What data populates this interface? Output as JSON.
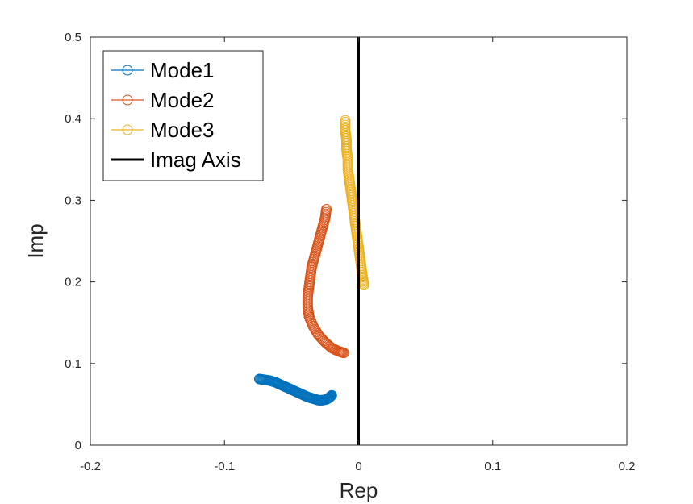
{
  "chart_data": {
    "type": "scatter",
    "xlabel": "Rep",
    "ylabel": "Imp",
    "xlim": [
      -0.2,
      0.2
    ],
    "ylim": [
      0,
      0.5
    ],
    "xticks": [
      -0.2,
      -0.1,
      0,
      0.1,
      0.2
    ],
    "yticks": [
      0,
      0.1,
      0.2,
      0.3,
      0.4,
      0.5
    ],
    "xtick_labels": [
      "-0.2",
      "-0.1",
      "0",
      "0.1",
      "0.2"
    ],
    "ytick_labels": [
      "0",
      "0.1",
      "0.2",
      "0.3",
      "0.4",
      "0.5"
    ],
    "legend_position": "top-left",
    "series": [
      {
        "name": "Mode1",
        "color": "#0072BD",
        "marker": "circle",
        "points": [
          [
            -0.074,
            0.081
          ],
          [
            -0.07,
            0.08
          ],
          [
            -0.066,
            0.079
          ],
          [
            -0.062,
            0.077
          ],
          [
            -0.058,
            0.074
          ],
          [
            -0.054,
            0.071
          ],
          [
            -0.05,
            0.068
          ],
          [
            -0.046,
            0.065
          ],
          [
            -0.042,
            0.062
          ],
          [
            -0.038,
            0.059
          ],
          [
            -0.034,
            0.057
          ],
          [
            -0.03,
            0.055
          ],
          [
            -0.027,
            0.055
          ],
          [
            -0.024,
            0.056
          ],
          [
            -0.022,
            0.058
          ],
          [
            -0.02,
            0.061
          ]
        ]
      },
      {
        "name": "Mode2",
        "color": "#D95319",
        "marker": "circle",
        "points": [
          [
            -0.024,
            0.289
          ],
          [
            -0.025,
            0.278
          ],
          [
            -0.027,
            0.266
          ],
          [
            -0.029,
            0.254
          ],
          [
            -0.031,
            0.242
          ],
          [
            -0.033,
            0.23
          ],
          [
            -0.035,
            0.218
          ],
          [
            -0.036,
            0.206
          ],
          [
            -0.037,
            0.194
          ],
          [
            -0.038,
            0.182
          ],
          [
            -0.038,
            0.17
          ],
          [
            -0.037,
            0.158
          ],
          [
            -0.034,
            0.146
          ],
          [
            -0.03,
            0.135
          ],
          [
            -0.025,
            0.126
          ],
          [
            -0.02,
            0.119
          ],
          [
            -0.015,
            0.115
          ],
          [
            -0.011,
            0.113
          ]
        ]
      },
      {
        "name": "Mode3",
        "color": "#EDB120",
        "marker": "circle",
        "points": [
          [
            -0.01,
            0.398
          ],
          [
            -0.01,
            0.386
          ],
          [
            -0.009,
            0.374
          ],
          [
            -0.009,
            0.362
          ],
          [
            -0.008,
            0.35
          ],
          [
            -0.008,
            0.338
          ],
          [
            -0.007,
            0.326
          ],
          [
            -0.006,
            0.314
          ],
          [
            -0.005,
            0.302
          ],
          [
            -0.004,
            0.29
          ],
          [
            -0.003,
            0.278
          ],
          [
            -0.002,
            0.266
          ],
          [
            -0.001,
            0.254
          ],
          [
            0.0,
            0.242
          ],
          [
            0.001,
            0.23
          ],
          [
            0.002,
            0.218
          ],
          [
            0.003,
            0.206
          ],
          [
            0.004,
            0.196
          ]
        ]
      },
      {
        "name": "Imag Axis",
        "color": "#000000",
        "marker": "none",
        "line": true,
        "points": [
          [
            0,
            0
          ],
          [
            0,
            0.5
          ]
        ]
      }
    ]
  }
}
